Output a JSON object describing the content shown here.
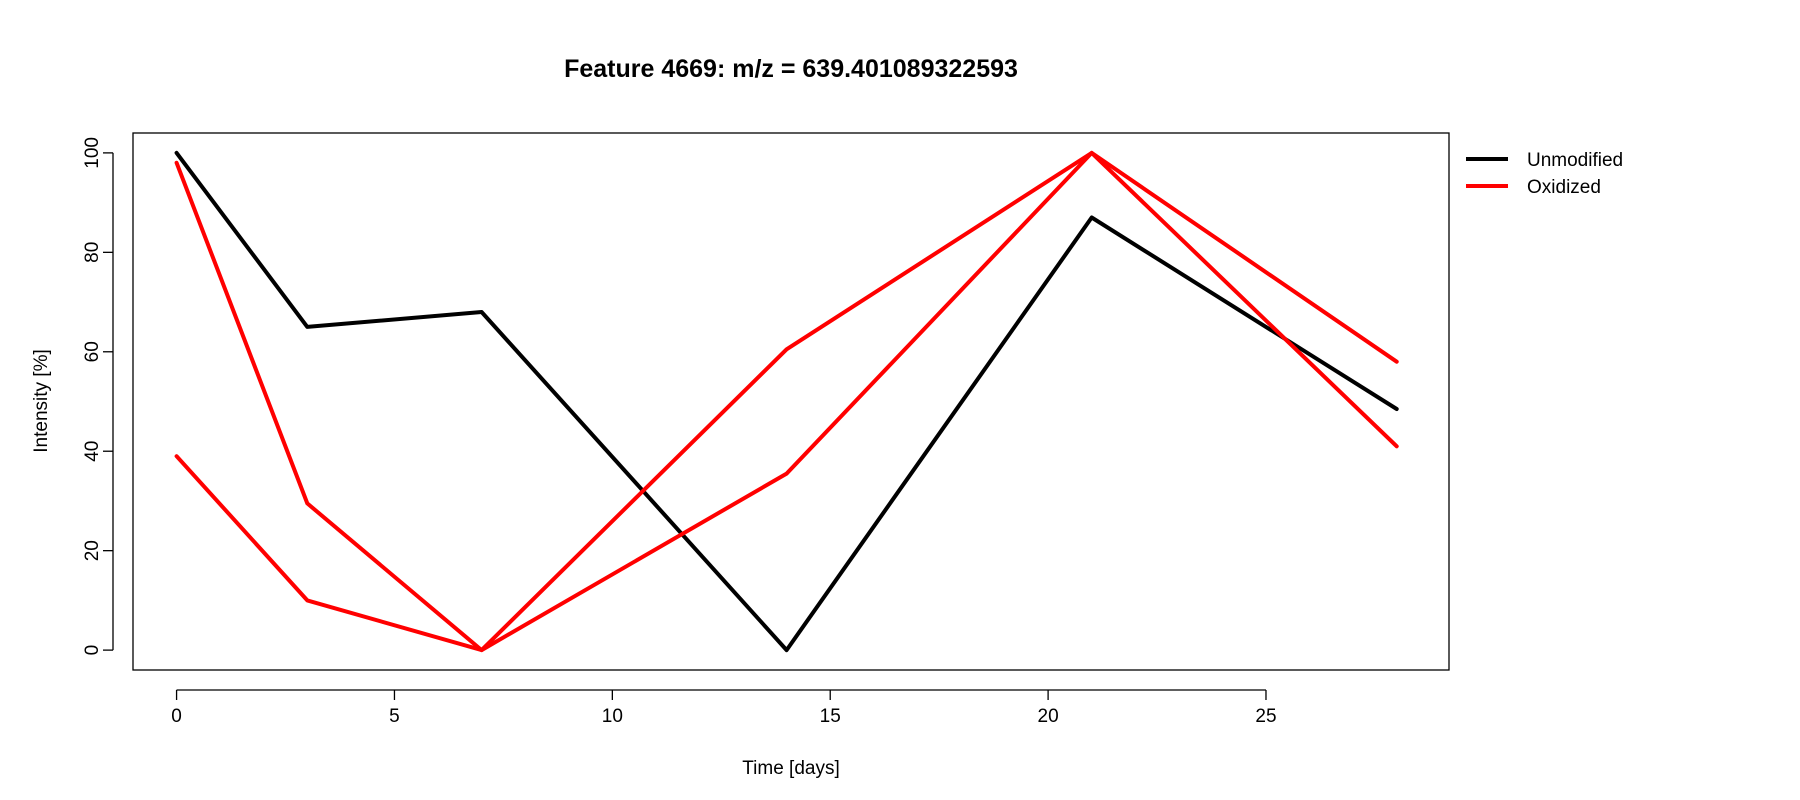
{
  "chart_data": {
    "type": "line",
    "title": "Feature 4669: m/z = 639.401089322593",
    "xlabel": "Time [days]",
    "ylabel": "Intensity [%]",
    "xlim": [
      -1,
      29.2
    ],
    "ylim": [
      -4,
      104
    ],
    "x_ticks": [
      0,
      5,
      10,
      15,
      20,
      25
    ],
    "y_ticks": [
      0,
      20,
      40,
      60,
      80,
      100
    ],
    "grid": false,
    "legend_position": "top-right-outside",
    "legend": [
      {
        "label": "Unmodified",
        "color": "#000000"
      },
      {
        "label": "Oxidized",
        "color": "#ff0000"
      }
    ],
    "series": [
      {
        "name": "Unmodified",
        "color": "#000000",
        "x": [
          0,
          3,
          7,
          14,
          21,
          28
        ],
        "y": [
          100,
          65,
          68,
          0,
          87,
          48.5
        ]
      },
      {
        "name": "Oxidized",
        "color": "#ff0000",
        "x": [
          0,
          3,
          7,
          14,
          21,
          28
        ],
        "y": [
          98,
          29.5,
          0,
          35.5,
          100,
          41
        ]
      },
      {
        "name": "Oxidized",
        "color": "#ff0000",
        "x": [
          0,
          3,
          7,
          14,
          21,
          28
        ],
        "y": [
          39,
          10,
          0,
          60.5,
          100,
          58
        ]
      }
    ]
  }
}
